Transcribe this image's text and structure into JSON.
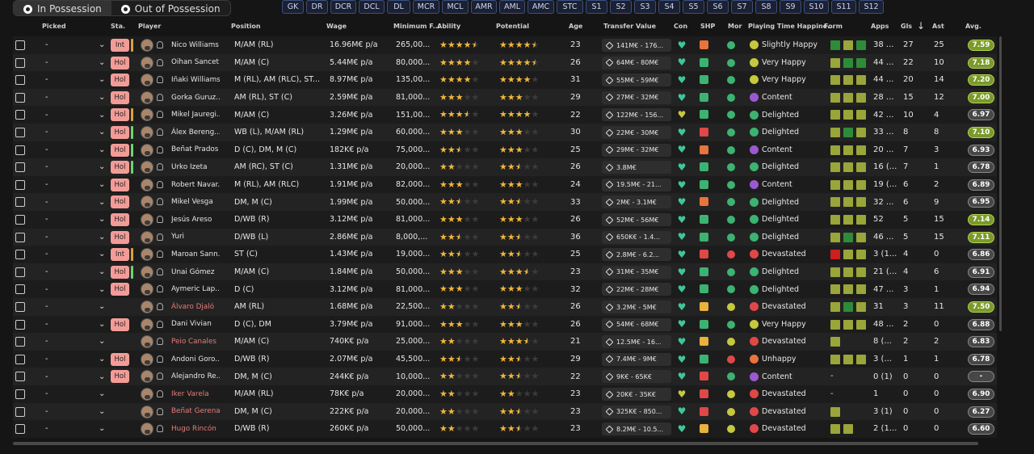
{
  "tabs": [
    {
      "label": "In Possession",
      "active": true
    },
    {
      "label": "Out of Possession",
      "active": false
    }
  ],
  "positions": [
    "GK",
    "DR",
    "DCR",
    "DCL",
    "DL",
    "MCR",
    "MCL",
    "AMR",
    "AML",
    "AMC",
    "STC",
    "S1",
    "S2",
    "S3",
    "S4",
    "S5",
    "S6",
    "S7",
    "S8",
    "S9",
    "S10",
    "S11",
    "S12"
  ],
  "headers": {
    "picked": "Picked",
    "sta": "Sta.",
    "player": "Player",
    "position": "Position",
    "wage": "Wage",
    "minfee": "Minimum F...",
    "ability": "Ability",
    "potential": "Potential",
    "age": "Age",
    "tv": "Transfer Value",
    "con": "Con",
    "shp": "SHP",
    "mor": "Mor",
    "happy": "Playing Time Happine...",
    "form": "Form",
    "apps": "Apps",
    "gls": "Gls",
    "ast": "Ast",
    "avg": "Avg."
  },
  "colors": {
    "form_green": "#2e8b3a",
    "form_olive": "#9aa53a",
    "form_lime": "#b7b44a",
    "form_red": "#cc1f1f",
    "star": "#f0b73c"
  },
  "players": [
    {
      "picked": "-",
      "sta": "Int",
      "bar": "#d6a23c",
      "name": "Nico Williams",
      "name_red": false,
      "position": "M/AM (RL)",
      "wage": "16.96M€ p/a",
      "minfee": "265,00...",
      "ab": 4.5,
      "pot": 4.5,
      "age": "23",
      "tv": "141M€ - 176...",
      "con": "#3fc69a",
      "shp": "#e8743c",
      "mor": "#3cb371",
      "happy": "Slightly Happy",
      "hcol": "#c6c83e",
      "form": [
        "#2e8b3a",
        "#9aa53a",
        "#2e8b3a"
      ],
      "apps": "38 ...",
      "gls": "27",
      "ast": "25",
      "avg": "7.59",
      "avgc": "g"
    },
    {
      "picked": "-",
      "sta": "Hol",
      "bar": "",
      "name": "Oihan Sancet",
      "name_red": false,
      "position": "M/AM (C)",
      "wage": "5.44M€ p/a",
      "minfee": "80,000...",
      "ab": 4,
      "pot": 4.5,
      "age": "26",
      "tv": "64M€ - 80M€",
      "con": "#3fc69a",
      "shp": "#3cb371",
      "mor": "#3cb371",
      "happy": "Very Happy",
      "hcol": "#c6c83e",
      "form": [
        "#9aa53a",
        "#2e8b3a",
        "#2e8b3a"
      ],
      "apps": "44 ...",
      "gls": "22",
      "ast": "10",
      "avg": "7.18",
      "avgc": "g"
    },
    {
      "picked": "-",
      "sta": "Hol",
      "bar": "",
      "name": "Iñaki Williams",
      "name_red": false,
      "position": "M (RL), AM (RLC), ST...",
      "wage": "8.97M€ p/a",
      "minfee": "135,00...",
      "ab": 4,
      "pot": 4,
      "age": "31",
      "tv": "55M€ - 59M€",
      "con": "#3fc69a",
      "shp": "#3cb371",
      "mor": "#3cb371",
      "happy": "Very Happy",
      "hcol": "#c6c83e",
      "form": [
        "#9aa53a",
        "#9aa53a",
        "#9aa53a"
      ],
      "apps": "44 ...",
      "gls": "20",
      "ast": "14",
      "avg": "7.20",
      "avgc": "g"
    },
    {
      "picked": "-",
      "sta": "Hol",
      "bar": "",
      "name": "Gorka Guruz...",
      "name_red": false,
      "position": "AM (RL), ST (C)",
      "wage": "2.59M€ p/a",
      "minfee": "81,000...",
      "ab": 3,
      "pot": 3,
      "age": "29",
      "tv": "27M€ - 32M€",
      "con": "#3fc69a",
      "shp": "#3cb371",
      "mor": "#3cb371",
      "happy": "Content",
      "hcol": "#9b59d0",
      "form": [
        "#9aa53a",
        "#9aa53a",
        "#9aa53a"
      ],
      "apps": "28 ...",
      "gls": "15",
      "ast": "12",
      "avg": "7.00",
      "avgc": "g"
    },
    {
      "picked": "-",
      "sta": "Hol",
      "bar": "#d6a23c",
      "name": "Mikel Jauregi...",
      "name_red": false,
      "position": "M/AM (C)",
      "wage": "3.26M€ p/a",
      "minfee": "151,00...",
      "ab": 3.5,
      "pot": 4,
      "age": "22",
      "tv": "122M€ - 156...",
      "con": "#c6c83e",
      "shp": "#3cb371",
      "mor": "#3cb371",
      "happy": "Delighted",
      "hcol": "#3cb371",
      "form": [
        "#9aa53a",
        "#9aa53a",
        "#9aa53a"
      ],
      "apps": "42 ...",
      "gls": "10",
      "ast": "4",
      "avg": "6.97",
      "avgc": "d"
    },
    {
      "picked": "-",
      "sta": "Hol",
      "bar": "#6fd36f",
      "name": "Álex Bereng...",
      "name_red": false,
      "position": "WB (L), M/AM (RL)",
      "wage": "1.29M€ p/a",
      "minfee": "60,000...",
      "ab": 3,
      "pot": 3,
      "age": "30",
      "tv": "22M€ - 30M€",
      "con": "#3fc69a",
      "shp": "#e04848",
      "mor": "#3cb371",
      "happy": "Delighted",
      "hcol": "#3cb371",
      "form": [
        "#9aa53a",
        "#2e8b3a",
        "#9aa53a"
      ],
      "apps": "33 ...",
      "gls": "8",
      "ast": "8",
      "avg": "7.10",
      "avgc": "g"
    },
    {
      "picked": "-",
      "sta": "Hol",
      "bar": "#6fd36f",
      "name": "Beñat Prados",
      "name_red": false,
      "position": "D (C), DM, M (C)",
      "wage": "182K€ p/a",
      "minfee": "75,000...",
      "ab": 2.5,
      "pot": 3,
      "age": "25",
      "tv": "29M€ - 32M€",
      "con": "#3fc69a",
      "shp": "#e8743c",
      "mor": "#3cb371",
      "happy": "Content",
      "hcol": "#9b59d0",
      "form": [
        "#9aa53a",
        "#9aa53a",
        "#9aa53a"
      ],
      "apps": "20 ...",
      "gls": "7",
      "ast": "3",
      "avg": "6.93",
      "avgc": "d"
    },
    {
      "picked": "-",
      "sta": "Hol",
      "bar": "#6fd36f",
      "name": "Urko Izeta",
      "name_red": false,
      "position": "AM (RC), ST (C)",
      "wage": "1.31M€ p/a",
      "minfee": "20,000...",
      "ab": 2,
      "pot": 2.5,
      "age": "26",
      "tv": "3.8M€",
      "con": "#3fc69a",
      "shp": "#3cb371",
      "mor": "#3cb371",
      "happy": "Delighted",
      "hcol": "#3cb371",
      "form": [
        "#9aa53a",
        "#9aa53a",
        "#9aa53a"
      ],
      "apps": "16 (...",
      "gls": "7",
      "ast": "1",
      "avg": "6.78",
      "avgc": "d"
    },
    {
      "picked": "-",
      "sta": "Hol",
      "bar": "",
      "name": "Robert Navar...",
      "name_red": false,
      "position": "M (RL), AM (RLC)",
      "wage": "1.91M€ p/a",
      "minfee": "82,000...",
      "ab": 3,
      "pot": 3,
      "age": "24",
      "tv": "19.5M€ - 21...",
      "con": "#3fc69a",
      "shp": "#3cb371",
      "mor": "#3cb371",
      "happy": "Content",
      "hcol": "#9b59d0",
      "form": [
        "#9aa53a",
        "#9aa53a",
        "#9aa53a"
      ],
      "apps": "19 (...",
      "gls": "6",
      "ast": "2",
      "avg": "6.89",
      "avgc": "d"
    },
    {
      "picked": "-",
      "sta": "Hol",
      "bar": "",
      "name": "Mikel Vesga",
      "name_red": false,
      "position": "DM, M (C)",
      "wage": "1.99M€ p/a",
      "minfee": "50,000...",
      "ab": 2.5,
      "pot": 2.5,
      "age": "33",
      "tv": "2M€ - 3.1M€",
      "con": "#3fc69a",
      "shp": "#e8743c",
      "mor": "#3cb371",
      "happy": "Delighted",
      "hcol": "#3cb371",
      "form": [
        "#9aa53a",
        "#9aa53a",
        "#9aa53a"
      ],
      "apps": "32 ...",
      "gls": "6",
      "ast": "9",
      "avg": "6.95",
      "avgc": "d"
    },
    {
      "picked": "-",
      "sta": "Hol",
      "bar": "",
      "name": "Jesús Areso",
      "name_red": false,
      "position": "D/WB (R)",
      "wage": "3.12M€ p/a",
      "minfee": "81,000...",
      "ab": 3,
      "pot": 3,
      "age": "26",
      "tv": "52M€ - 56M€",
      "con": "#3fc69a",
      "shp": "#3cb371",
      "mor": "#3cb371",
      "happy": "Delighted",
      "hcol": "#3cb371",
      "form": [
        "#9aa53a",
        "#9aa53a",
        "#9aa53a"
      ],
      "apps": "52",
      "gls": "5",
      "ast": "15",
      "avg": "7.14",
      "avgc": "g"
    },
    {
      "picked": "-",
      "sta": "Hol",
      "bar": "",
      "name": "Yuri",
      "name_red": false,
      "position": "D/WB (L)",
      "wage": "2.86M€ p/a",
      "minfee": "8,000,...",
      "ab": 2.5,
      "pot": 2.5,
      "age": "36",
      "tv": "650K€ - 1.4...",
      "con": "#3fc69a",
      "shp": "#3cb371",
      "mor": "#3cb371",
      "happy": "Delighted",
      "hcol": "#3cb371",
      "form": [
        "#9aa53a",
        "#2e8b3a",
        "#9aa53a"
      ],
      "apps": "46 ...",
      "gls": "5",
      "ast": "15",
      "avg": "7.11",
      "avgc": "g"
    },
    {
      "picked": "-",
      "sta": "Int",
      "bar": "#d6a23c",
      "name": "Maroan Sann...",
      "name_red": false,
      "position": "ST (C)",
      "wage": "1.43M€ p/a",
      "minfee": "19,000...",
      "ab": 2.5,
      "pot": 2.5,
      "age": "25",
      "tv": "2.8M€ - 6.2...",
      "con": "#3fc69a",
      "shp": "#e04848",
      "mor": "#e04848",
      "happy": "Devastated",
      "hcol": "#e04848",
      "form": [
        "#cc1f1f",
        "#9aa53a",
        "#9aa53a"
      ],
      "apps": "3 (1...",
      "gls": "4",
      "ast": "0",
      "avg": "6.86",
      "avgc": "d"
    },
    {
      "picked": "-",
      "sta": "Hol",
      "bar": "#6fd36f",
      "name": "Unai Gómez",
      "name_red": false,
      "position": "M/AM (C)",
      "wage": "1.84M€ p/a",
      "minfee": "50,000...",
      "ab": 3,
      "pot": 3.5,
      "age": "23",
      "tv": "31M€ - 35M€",
      "con": "#3fc69a",
      "shp": "#3cb371",
      "mor": "#3cb371",
      "happy": "Delighted",
      "hcol": "#3cb371",
      "form": [
        "#9aa53a",
        "#9aa53a",
        "#9aa53a"
      ],
      "apps": "21 (...",
      "gls": "4",
      "ast": "6",
      "avg": "6.91",
      "avgc": "d"
    },
    {
      "picked": "-",
      "sta": "Hol",
      "bar": "",
      "name": "Aymeric Lap...",
      "name_red": false,
      "position": "D (C)",
      "wage": "3.12M€ p/a",
      "minfee": "81,000...",
      "ab": 3,
      "pot": 3,
      "age": "32",
      "tv": "22M€ - 28M€",
      "con": "#3fc69a",
      "shp": "#3cb371",
      "mor": "#3cb371",
      "happy": "Delighted",
      "hcol": "#3cb371",
      "form": [
        "#9aa53a",
        "#9aa53a",
        "#9aa53a"
      ],
      "apps": "47 ...",
      "gls": "3",
      "ast": "1",
      "avg": "6.94",
      "avgc": "d"
    },
    {
      "picked": "-",
      "sta": "",
      "bar": "",
      "name": "Álvaro Djaló",
      "name_red": true,
      "position": "AM (RL)",
      "wage": "1.68M€ p/a",
      "minfee": "22,500...",
      "ab": 2,
      "pot": 2.5,
      "age": "26",
      "tv": "3.2M€ - 5M€",
      "con": "#3fc69a",
      "shp": "#e8b23c",
      "mor": "#c6c83e",
      "happy": "Devastated",
      "hcol": "#e04848",
      "form": [
        "#9aa53a",
        "#2e8b3a",
        "#9aa53a"
      ],
      "apps": "31",
      "gls": "3",
      "ast": "11",
      "avg": "7.50",
      "avgc": "g"
    },
    {
      "picked": "-",
      "sta": "Hol",
      "bar": "",
      "name": "Dani Vivian",
      "name_red": false,
      "position": "D (C), DM",
      "wage": "3.79M€ p/a",
      "minfee": "91,000...",
      "ab": 3,
      "pot": 3,
      "age": "26",
      "tv": "54M€ - 68M€",
      "con": "#3fc69a",
      "shp": "#3cb371",
      "mor": "#3cb371",
      "happy": "Very Happy",
      "hcol": "#c6c83e",
      "form": [
        "#9aa53a",
        "#9aa53a",
        "#9aa53a"
      ],
      "apps": "48 ...",
      "gls": "2",
      "ast": "0",
      "avg": "6.88",
      "avgc": "d"
    },
    {
      "picked": "-",
      "sta": "",
      "bar": "",
      "name": "Peio Canales",
      "name_red": true,
      "position": "M/AM (C)",
      "wage": "740K€ p/a",
      "minfee": "25,000...",
      "ab": 2,
      "pot": 3.5,
      "age": "21",
      "tv": "12.5M€ - 16...",
      "con": "#3fc69a",
      "shp": "#e8b23c",
      "mor": "#c6c83e",
      "happy": "Devastated",
      "hcol": "#e04848",
      "form": [
        "#9aa53a"
      ],
      "apps": "8 (...",
      "gls": "2",
      "ast": "2",
      "avg": "6.83",
      "avgc": "d"
    },
    {
      "picked": "-",
      "sta": "Hol",
      "bar": "",
      "name": "Andoni Goro...",
      "name_red": false,
      "position": "D/WB (R)",
      "wage": "2.07M€ p/a",
      "minfee": "45,500...",
      "ab": 2.5,
      "pot": 2.5,
      "age": "29",
      "tv": "7.4M€ - 9M€",
      "con": "#3fc69a",
      "shp": "#3cb371",
      "mor": "#e04848",
      "happy": "Unhappy",
      "hcol": "#e8743c",
      "form": [
        "#9aa53a",
        "#9aa53a",
        "#9aa53a"
      ],
      "apps": "3 (...",
      "gls": "1",
      "ast": "1",
      "avg": "6.78",
      "avgc": "d"
    },
    {
      "picked": "-",
      "sta": "Hol",
      "bar": "",
      "name": "Alejandro Re...",
      "name_red": false,
      "position": "DM, M (C)",
      "wage": "244K€ p/a",
      "minfee": "10,000...",
      "ab": 2,
      "pot": 2.5,
      "age": "22",
      "tv": "9K€ - 65K€",
      "con": "#3fc69a",
      "shp": "#e04848",
      "mor": "#3cb371",
      "happy": "Content",
      "hcol": "#9b59d0",
      "form": [],
      "apps": "0 (1)",
      "gls": "0",
      "ast": "0",
      "avg": "-",
      "avgc": "d"
    },
    {
      "picked": "-",
      "sta": "",
      "bar": "",
      "name": "Iker Varela",
      "name_red": true,
      "position": "M/AM (RL)",
      "wage": "78K€ p/a",
      "minfee": "20,000...",
      "ab": 2,
      "pot": 2,
      "age": "23",
      "tv": "20K€ - 35K€",
      "con": "#c6c83e",
      "shp": "#e04848",
      "mor": "#c6c83e",
      "happy": "Devastated",
      "hcol": "#e04848",
      "form": [],
      "apps": "1",
      "gls": "0",
      "ast": "0",
      "avg": "6.90",
      "avgc": "d"
    },
    {
      "picked": "-",
      "sta": "",
      "bar": "",
      "name": "Beñat Gerena...",
      "name_red": true,
      "position": "DM, M (C)",
      "wage": "222K€ p/a",
      "minfee": "20,000...",
      "ab": 2,
      "pot": 2.5,
      "age": "23",
      "tv": "325K€ - 850...",
      "con": "#3fc69a",
      "shp": "#e04848",
      "mor": "#c6c83e",
      "happy": "Devastated",
      "hcol": "#e04848",
      "form": [
        "#9aa53a"
      ],
      "apps": "3 (1)",
      "gls": "0",
      "ast": "0",
      "avg": "6.27",
      "avgc": "d"
    },
    {
      "picked": "-",
      "sta": "",
      "bar": "",
      "name": "Hugo Rincón",
      "name_red": true,
      "position": "D/WB (R)",
      "wage": "260K€ p/a",
      "minfee": "50,000...",
      "ab": 2,
      "pot": 2.5,
      "age": "23",
      "tv": "8.2M€ - 10.5...",
      "con": "#3fc69a",
      "shp": "#e8b23c",
      "mor": "#c6c83e",
      "happy": "Devastated",
      "hcol": "#e04848",
      "form": [
        "#9aa53a",
        "#9aa53a"
      ],
      "apps": "2 (1...",
      "gls": "0",
      "ast": "0",
      "avg": "6.60",
      "avgc": "d"
    }
  ]
}
